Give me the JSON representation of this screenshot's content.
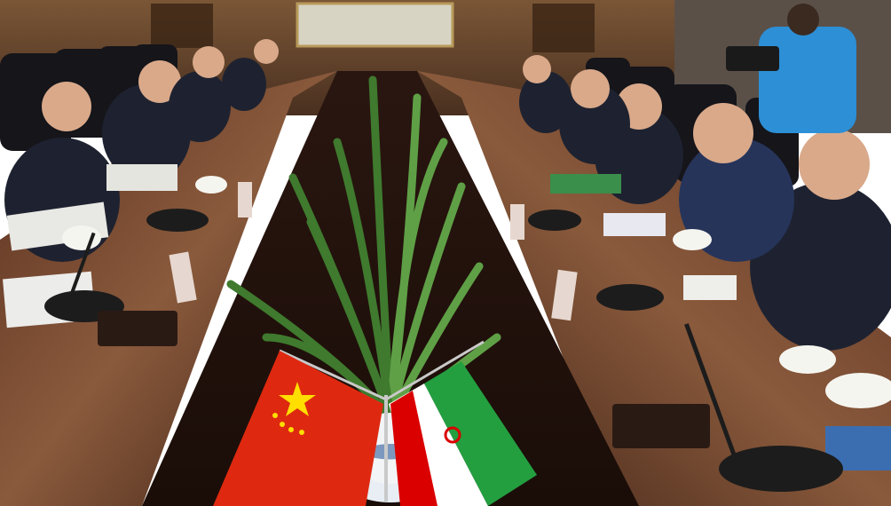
{
  "image": {
    "kind": "photograph",
    "scene": "meeting-room",
    "palette": {
      "wall": "#6b4a2f",
      "table": "#3a1f14",
      "table_highlight": "#8a5a3c",
      "suit": "#1e2230",
      "skin": "#d9a98a",
      "plant": "#4f8f3a",
      "flag_china_red": "#de2910",
      "flag_china_star": "#ffde00",
      "flag_iran_green": "#239f40",
      "flag_iran_white": "#ffffff",
      "flag_iran_red": "#da0000",
      "cameraman_jacket": "#2d8fd6"
    }
  }
}
